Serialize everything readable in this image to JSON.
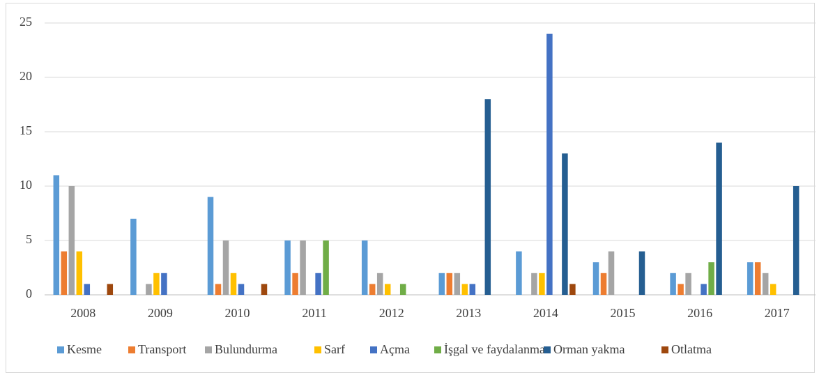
{
  "chart_data": {
    "type": "bar",
    "categories": [
      "2008",
      "2009",
      "2010",
      "2011",
      "2012",
      "2013",
      "2014",
      "2015",
      "2016",
      "2017"
    ],
    "series": [
      {
        "name": "Kesme",
        "color": "#5b9bd5",
        "values": [
          11,
          7,
          9,
          5,
          5,
          2,
          4,
          3,
          2,
          3
        ]
      },
      {
        "name": "Transport",
        "color": "#ed7d31",
        "values": [
          4,
          0,
          1,
          2,
          1,
          2,
          0,
          2,
          1,
          3
        ]
      },
      {
        "name": "Bulundurma",
        "color": "#a5a5a5",
        "values": [
          10,
          1,
          5,
          5,
          2,
          2,
          2,
          4,
          2,
          2
        ]
      },
      {
        "name": "Sarf",
        "color": "#ffc000",
        "values": [
          4,
          2,
          2,
          0,
          1,
          1,
          2,
          0,
          0,
          1
        ]
      },
      {
        "name": "Açma",
        "color": "#4472c4",
        "values": [
          1,
          2,
          1,
          2,
          0,
          1,
          24,
          0,
          1,
          0
        ]
      },
      {
        "name": "İşgal ve faydalanma",
        "color": "#70ad47",
        "values": [
          0,
          0,
          0,
          5,
          1,
          0,
          0,
          0,
          3,
          0
        ]
      },
      {
        "name": "Orman yakma",
        "color": "#255e91",
        "values": [
          0,
          0,
          0,
          0,
          0,
          18,
          13,
          4,
          14,
          10
        ]
      },
      {
        "name": "Otlatma",
        "color": "#9e480e",
        "values": [
          1,
          0,
          1,
          0,
          0,
          0,
          1,
          0,
          0,
          0
        ]
      }
    ],
    "ylim": [
      0,
      25
    ],
    "yticks": [
      0,
      5,
      10,
      15,
      20,
      25
    ],
    "grid": true,
    "legend": "bottom"
  }
}
